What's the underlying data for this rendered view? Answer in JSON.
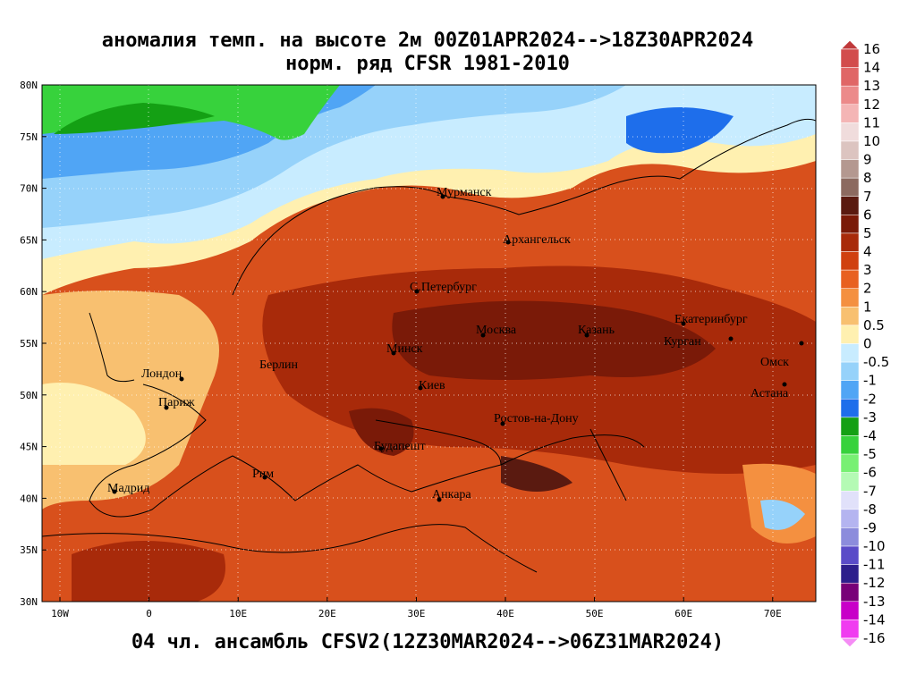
{
  "title": [
    "аномалия темп. на высоте 2м 00Z01APR2024-->18Z30APR2024",
    "норм. ряд CFSR 1981-2010"
  ],
  "footer": "04 чл. ансамбль CFSV2(12Z30MAR2024-->06Z31MAR2024)",
  "axes": {
    "lat_labels": [
      "80N",
      "75N",
      "70N",
      "65N",
      "60N",
      "55N",
      "50N",
      "45N",
      "40N",
      "35N",
      "30N"
    ],
    "lon_labels": [
      "10W",
      "0",
      "10E",
      "20E",
      "30E",
      "40E",
      "50E",
      "60E",
      "70E"
    ]
  },
  "cities": [
    "Мурманск",
    "Архангельск",
    "С.Петербург",
    "Москва",
    "Казань",
    "Екатеринбург",
    "Курган",
    "Омск",
    "Минск",
    "Берлин",
    "Лондон",
    "Париж",
    "Киев",
    "Астана",
    "Ростов-на-Дону",
    "Будапешт",
    "Рим",
    "Мадрид",
    "Анкара"
  ],
  "colorbar": {
    "labels": [
      "16",
      "14",
      "13",
      "12",
      "11",
      "10",
      "9",
      "8",
      "7",
      "6",
      "5",
      "4",
      "3",
      "2",
      "1",
      "0.5",
      "0",
      "-0.5",
      "-1",
      "-2",
      "-3",
      "-4",
      "-5",
      "-6",
      "-7",
      "-8",
      "-9",
      "-10",
      "-11",
      "-12",
      "-13",
      "-14",
      "-16"
    ],
    "colors": [
      "#c0393b",
      "#d24c4c",
      "#e06666",
      "#ec8a8a",
      "#f4b5b5",
      "#f0dcdc",
      "#dcc4c0",
      "#b49890",
      "#8c6a60",
      "#5a1a10",
      "#7a1a08",
      "#a82a0a",
      "#d04010",
      "#e86020",
      "#f49040",
      "#f8c070",
      "#fff0b0",
      "#c8ecff",
      "#96d2fa",
      "#50a5f5",
      "#1e6eeb",
      "#14a014",
      "#37d23c",
      "#78f073",
      "#b4fab4",
      "#e1e1fa",
      "#b4b4f0",
      "#8c8cdc",
      "#5a4bc8",
      "#2d1e8c",
      "#780078",
      "#c800c8",
      "#f03cf0",
      "#f58cf5"
    ]
  }
}
